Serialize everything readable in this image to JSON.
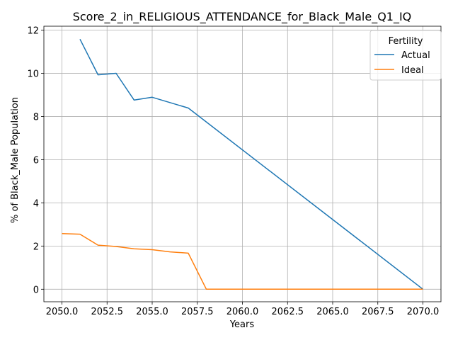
{
  "chart_data": {
    "type": "line",
    "title": "Score_2_in_RELIGIOUS_ATTENDANCE_for_Black_Male_Q1_IQ",
    "xlabel": "Years",
    "ylabel": "% of Black_Male Population",
    "xlim": [
      2049.0,
      2071.0
    ],
    "ylim": [
      -0.58,
      12.18
    ],
    "xticks": [
      2050.0,
      2052.5,
      2055.0,
      2057.5,
      2060.0,
      2062.5,
      2065.0,
      2067.5,
      2070.0
    ],
    "xtick_labels": [
      "2050.0",
      "2052.5",
      "2055.0",
      "2057.5",
      "2060.0",
      "2062.5",
      "2065.0",
      "2067.5",
      "2070.0"
    ],
    "yticks": [
      0,
      2,
      4,
      6,
      8,
      10,
      12
    ],
    "ytick_labels": [
      "0",
      "2",
      "4",
      "6",
      "8",
      "10",
      "12"
    ],
    "grid": true,
    "legend": {
      "title": "Fertility",
      "placement": "top-right"
    },
    "series": [
      {
        "name": "Actual",
        "color": "#1f77b4",
        "x": [
          2051,
          2052,
          2053,
          2054,
          2055,
          2057,
          2070
        ],
        "y": [
          11.58,
          9.93,
          10.0,
          8.76,
          8.89,
          8.39,
          0.0
        ]
      },
      {
        "name": "Ideal",
        "color": "#ff7f0e",
        "x": [
          2050,
          2051,
          2052,
          2053,
          2054,
          2055,
          2056,
          2057,
          2058,
          2059,
          2060,
          2061,
          2062,
          2063,
          2064,
          2065,
          2066,
          2067,
          2068,
          2069,
          2070
        ],
        "y": [
          2.58,
          2.55,
          2.04,
          1.98,
          1.87,
          1.83,
          1.73,
          1.67,
          0.0,
          0.0,
          0.0,
          0.0,
          0.0,
          0.0,
          0.0,
          0.0,
          0.0,
          0.0,
          0.0,
          0.0,
          0.0
        ]
      }
    ]
  }
}
